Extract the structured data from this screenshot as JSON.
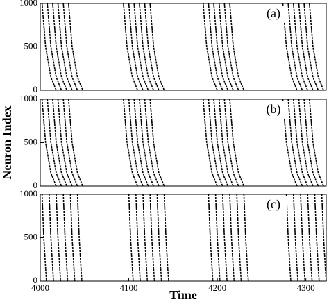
{
  "chart_data": [
    {
      "type": "raster",
      "label": "(a)",
      "color": "#000",
      "xlim": [
        4000,
        4323
      ],
      "ylim": [
        0,
        1000
      ],
      "yticks": [
        0,
        500,
        1000
      ],
      "y": [
        1000,
        500,
        150,
        0
      ],
      "curves": [
        [
          4002,
          4006,
          4012,
          4018
        ],
        [
          4008,
          4012,
          4018,
          4024
        ],
        [
          4014,
          4018,
          4024,
          4030
        ],
        [
          4020,
          4024,
          4030,
          4036
        ],
        [
          4026,
          4030,
          4036,
          4042
        ],
        [
          4032,
          4036,
          4042,
          4048
        ],
        [
          4094,
          4098,
          4104,
          4110
        ],
        [
          4100,
          4104,
          4110,
          4116
        ],
        [
          4106,
          4110,
          4116,
          4122
        ],
        [
          4112,
          4116,
          4122,
          4128
        ],
        [
          4118,
          4122,
          4128,
          4134
        ],
        [
          4124,
          4128,
          4134,
          4140
        ],
        [
          4184,
          4188,
          4194,
          4200
        ],
        [
          4190,
          4194,
          4200,
          4206
        ],
        [
          4196,
          4200,
          4206,
          4212
        ],
        [
          4202,
          4206,
          4212,
          4218
        ],
        [
          4208,
          4212,
          4218,
          4224
        ],
        [
          4214,
          4218,
          4224,
          4230
        ],
        [
          4274,
          4278,
          4284,
          4290
        ],
        [
          4280,
          4284,
          4290,
          4296
        ],
        [
          4286,
          4290,
          4296,
          4302
        ],
        [
          4292,
          4296,
          4302,
          4308
        ],
        [
          4298,
          4302,
          4308,
          4314
        ],
        [
          4304,
          4308,
          4314,
          4320
        ]
      ]
    },
    {
      "type": "raster",
      "label": "(b)",
      "ylabel": "Neuron Index",
      "color": "#000",
      "xlim": [
        4000,
        4323
      ],
      "ylim": [
        0,
        1000
      ],
      "yticks": [
        0,
        500,
        1000
      ],
      "y": [
        1000,
        500,
        150,
        0
      ],
      "curves": [
        [
          4002,
          4006,
          4012,
          4018
        ],
        [
          4008,
          4012,
          4018,
          4024
        ],
        [
          4014,
          4018,
          4024,
          4030
        ],
        [
          4020,
          4024,
          4030,
          4036
        ],
        [
          4026,
          4030,
          4036,
          4042
        ],
        [
          4032,
          4036,
          4042,
          4048
        ],
        [
          4094,
          4098,
          4104,
          4110
        ],
        [
          4100,
          4104,
          4110,
          4116
        ],
        [
          4106,
          4110,
          4116,
          4122
        ],
        [
          4112,
          4116,
          4122,
          4128
        ],
        [
          4118,
          4122,
          4128,
          4134
        ],
        [
          4124,
          4128,
          4134,
          4140
        ],
        [
          4184,
          4188,
          4194,
          4200
        ],
        [
          4190,
          4194,
          4200,
          4206
        ],
        [
          4196,
          4200,
          4206,
          4212
        ],
        [
          4202,
          4206,
          4212,
          4218
        ],
        [
          4208,
          4212,
          4218,
          4224
        ],
        [
          4214,
          4218,
          4224,
          4230
        ],
        [
          4274,
          4278,
          4284,
          4290
        ],
        [
          4280,
          4284,
          4290,
          4296
        ],
        [
          4286,
          4290,
          4296,
          4302
        ],
        [
          4292,
          4296,
          4302,
          4308
        ],
        [
          4298,
          4302,
          4308,
          4314
        ],
        [
          4304,
          4308,
          4314,
          4320
        ]
      ]
    },
    {
      "type": "raster",
      "label": "(c)",
      "xlabel": "Time",
      "color": "#000",
      "xlim": [
        4000,
        4323
      ],
      "ylim": [
        0,
        1000
      ],
      "yticks": [
        0,
        500,
        1000
      ],
      "xticks": [
        4000,
        4100,
        4200,
        4300
      ],
      "y": [
        1000,
        500,
        150,
        0
      ],
      "curves": [
        [
          4002,
          4004,
          4006,
          4007
        ],
        [
          4010,
          4012,
          4014,
          4015
        ],
        [
          4018,
          4020,
          4022,
          4023
        ],
        [
          4026,
          4028,
          4030,
          4031
        ],
        [
          4034,
          4036,
          4038,
          4039
        ],
        [
          4042,
          4044,
          4046,
          4047
        ],
        [
          4100,
          4102,
          4104,
          4105
        ],
        [
          4108,
          4110,
          4112,
          4113
        ],
        [
          4116,
          4118,
          4120,
          4121
        ],
        [
          4124,
          4126,
          4128,
          4129
        ],
        [
          4132,
          4134,
          4136,
          4137
        ],
        [
          4140,
          4142,
          4144,
          4145
        ],
        [
          4190,
          4192,
          4194,
          4195
        ],
        [
          4198,
          4200,
          4202,
          4203
        ],
        [
          4206,
          4208,
          4210,
          4211
        ],
        [
          4214,
          4216,
          4218,
          4219
        ],
        [
          4222,
          4224,
          4226,
          4227
        ],
        [
          4230,
          4232,
          4234,
          4235
        ],
        [
          4278,
          4280,
          4282,
          4283
        ],
        [
          4286,
          4288,
          4290,
          4291
        ],
        [
          4294,
          4296,
          4298,
          4299
        ],
        [
          4302,
          4304,
          4306,
          4307
        ],
        [
          4310,
          4312,
          4314,
          4315
        ],
        [
          4318,
          4320,
          4322,
          4323
        ]
      ]
    }
  ]
}
